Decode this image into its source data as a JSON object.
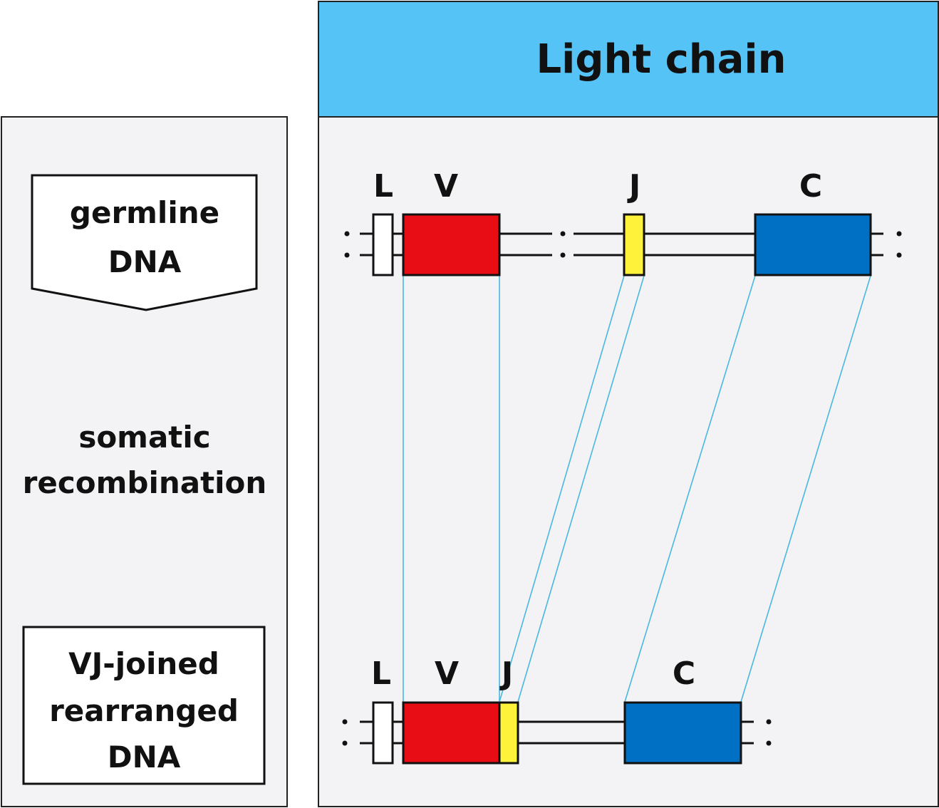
{
  "title": "Light chain",
  "side": {
    "germline_line1": "germline",
    "germline_line2": "DNA",
    "process_line1": "somatic",
    "process_line2": "recombination",
    "rearranged_line1": "VJ-joined",
    "rearranged_line2": "rearranged",
    "rearranged_line3": "DNA"
  },
  "germline": {
    "L": "L",
    "V": "V",
    "J": "J",
    "C": "C"
  },
  "rearranged": {
    "L": "L",
    "V": "V",
    "J": "J",
    "C": "C"
  },
  "colors": {
    "header": "#55c3f5",
    "panel": "#f3f3f6",
    "leader": "#ffffff",
    "variable": "#e80c14",
    "joining": "#fff23a",
    "constant": "#0070c4",
    "connector": "#49b8e0"
  }
}
